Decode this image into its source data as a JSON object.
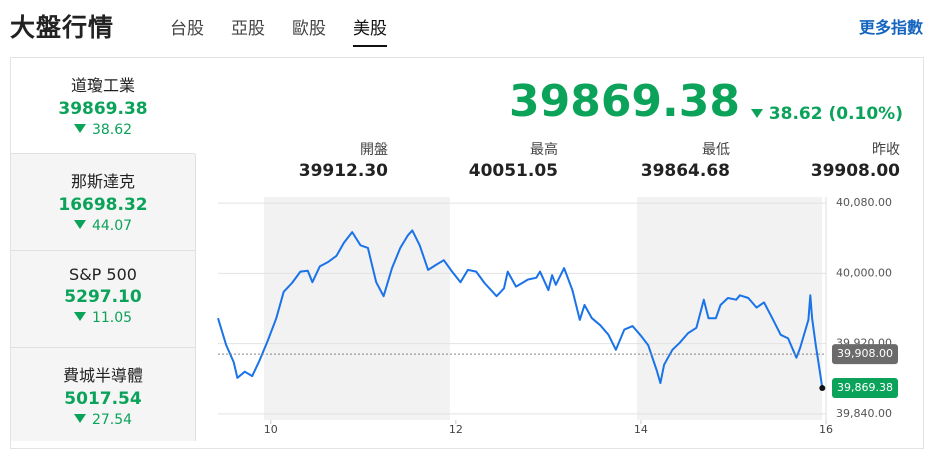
{
  "header": {
    "title": "大盤行情",
    "tabs": [
      "台股",
      "亞股",
      "歐股",
      "美股"
    ],
    "more": "更多指數"
  },
  "sidebar": [
    {
      "name": "道瓊工業",
      "price": "39869.38",
      "change": "38.62"
    },
    {
      "name": "那斯達克",
      "price": "16698.32",
      "change": "44.07"
    },
    {
      "name": "S&P 500",
      "price": "5297.10",
      "change": "11.05"
    },
    {
      "name": "費城半導體",
      "price": "5017.54",
      "change": "27.54"
    }
  ],
  "quote": {
    "price": "39869.38",
    "change": "38.62 (0.10%)"
  },
  "stats": [
    {
      "label": "開盤",
      "value": "39912.30"
    },
    {
      "label": "最高",
      "value": "40051.05"
    },
    {
      "label": "最低",
      "value": "39864.68"
    },
    {
      "label": "昨收",
      "value": "39908.00"
    }
  ],
  "chart_data": {
    "type": "line",
    "x": [
      9.43,
      9.52,
      9.6,
      9.64,
      9.72,
      9.8,
      9.88,
      9.97,
      10.06,
      10.14,
      10.23,
      10.32,
      10.4,
      10.45,
      10.53,
      10.62,
      10.71,
      10.79,
      10.88,
      10.97,
      11.05,
      11.14,
      11.22,
      11.31,
      11.4,
      11.48,
      11.53,
      11.61,
      11.7,
      11.79,
      11.87,
      11.96,
      12.05,
      12.13,
      12.22,
      12.31,
      12.44,
      12.52,
      12.56,
      12.65,
      12.78,
      12.87,
      12.91,
      13.0,
      13.04,
      13.08,
      13.17,
      13.26,
      13.34,
      13.39,
      13.47,
      13.56,
      13.65,
      13.73,
      13.82,
      13.91,
      14.0,
      14.08,
      14.17,
      14.21,
      14.25,
      14.34,
      14.42,
      14.51,
      14.6,
      14.68,
      14.73,
      14.81,
      14.86,
      14.94,
      15.03,
      15.07,
      15.16,
      15.25,
      15.33,
      15.42,
      15.51,
      15.59,
      15.68,
      15.72,
      15.81,
      15.83,
      15.85,
      15.89,
      15.94,
      15.96
    ],
    "series": [
      {
        "color": "#1a73e8",
        "values": [
          39949,
          39918,
          39899,
          39881,
          39888,
          39883,
          39901,
          39924,
          39949,
          39979,
          39989,
          40002,
          40003,
          39990,
          40008,
          40013,
          40020,
          40035,
          40047,
          40032,
          40029,
          39990,
          39974,
          40006,
          40029,
          40043,
          40049,
          40032,
          40004,
          40010,
          40015,
          40002,
          39990,
          40004,
          40002,
          39989,
          39974,
          39983,
          40002,
          39985,
          39993,
          39995,
          40002,
          39981,
          39998,
          39987,
          40006,
          39981,
          39947,
          39964,
          39949,
          39941,
          39930,
          39913,
          39936,
          39940,
          39929,
          39918,
          39890,
          39875,
          39896,
          39913,
          39921,
          39932,
          39938,
          39970,
          39949,
          39949,
          39964,
          39972,
          39970,
          39975,
          39972,
          39961,
          39967,
          39949,
          39930,
          39926,
          39904,
          39915,
          39947,
          39975,
          39949,
          39918,
          39884,
          39869.38
        ]
      }
    ],
    "xlim": [
      9.43,
      16
    ],
    "xticks": [
      10,
      12,
      14,
      16
    ],
    "ylim": [
      39833,
      40087
    ],
    "yticks": [
      {
        "value": 40080,
        "label": "40,080.00"
      },
      {
        "value": 40000,
        "label": "40,000.00"
      },
      {
        "value": 39920,
        "label": "39,920.00"
      },
      {
        "value": 39840,
        "label": "39,840.00"
      }
    ],
    "grid": true,
    "prev_close": {
      "value": 39908,
      "label": "39,908.00"
    },
    "last": {
      "value": 39869.38,
      "label": "39,869.38"
    }
  }
}
